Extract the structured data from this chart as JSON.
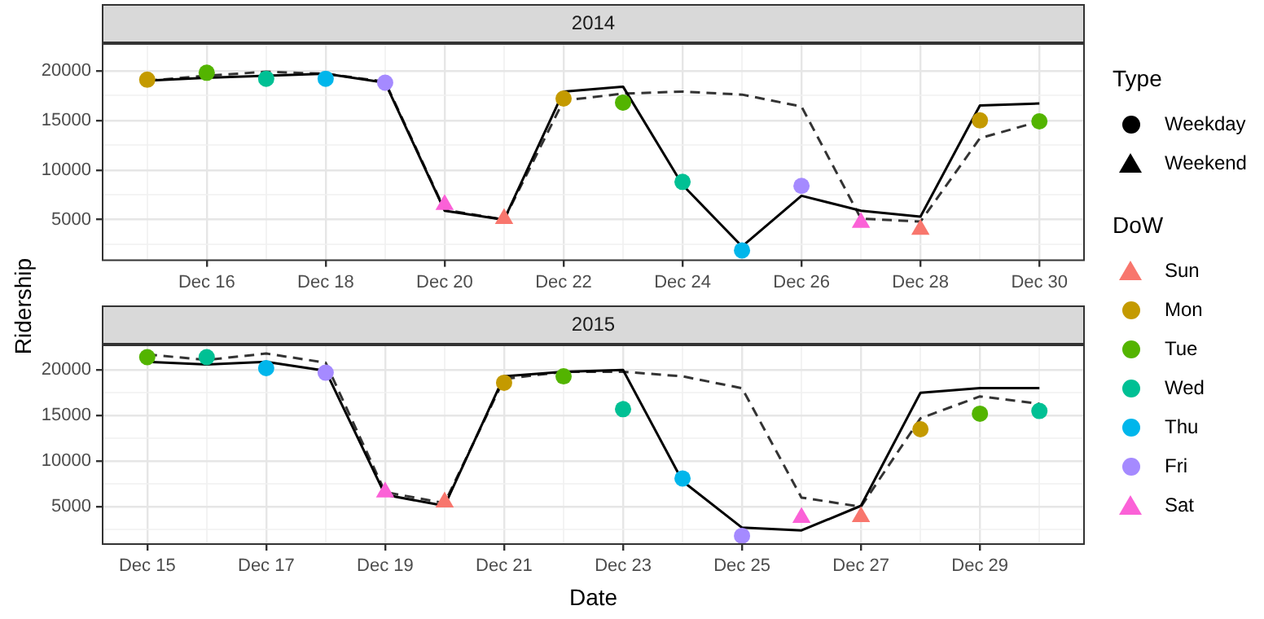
{
  "chart_data": [
    {
      "type": "line",
      "title": "2014",
      "ylabel": "Ridership",
      "legend_title": "Type",
      "legend": "right",
      "grid": true,
      "x": [
        "2014-12-15",
        "2014-12-16",
        "2014-12-17",
        "2014-12-18",
        "2014-12-19",
        "2014-12-20",
        "2014-12-21",
        "2014-12-22",
        "2014-12-23",
        "2014-12-24",
        "2014-12-25",
        "2014-12-26",
        "2014-12-27",
        "2014-12-28",
        "2014-12-29",
        "2014-12-30"
      ],
      "xlim": [
        "2014-12-14T06:00",
        "2014-12-30T18:00"
      ],
      "xticks": [
        {
          "value": "2014-12-15",
          "label": null
        },
        {
          "value": "2014-12-16",
          "label": "Dec 16"
        },
        {
          "value": "2014-12-17",
          "label": null
        },
        {
          "value": "2014-12-18",
          "label": "Dec 18"
        },
        {
          "value": "2014-12-19",
          "label": null
        },
        {
          "value": "2014-12-20",
          "label": "Dec 20"
        },
        {
          "value": "2014-12-21",
          "label": null
        },
        {
          "value": "2014-12-22",
          "label": "Dec 22"
        },
        {
          "value": "2014-12-23",
          "label": null
        },
        {
          "value": "2014-12-24",
          "label": "Dec 24"
        },
        {
          "value": "2014-12-25",
          "label": null
        },
        {
          "value": "2014-12-26",
          "label": "Dec 26"
        },
        {
          "value": "2014-12-27",
          "label": null
        },
        {
          "value": "2014-12-28",
          "label": "Dec 28"
        },
        {
          "value": "2014-12-29",
          "label": null
        },
        {
          "value": "2014-12-30",
          "label": "Dec 30"
        }
      ],
      "ylim": [
        900,
        22700
      ],
      "yticks": [
        {
          "value": 2500,
          "label": null
        },
        5000,
        {
          "value": 7500,
          "label": null
        },
        10000,
        {
          "value": 12500,
          "label": null
        },
        15000,
        {
          "value": 17500,
          "label": null
        },
        20000
      ],
      "series": [
        {
          "type": "line",
          "color": "#000000",
          "line_style": "solid",
          "marker": "none",
          "values": [
            19000,
            19300,
            19500,
            19700,
            18800,
            5900,
            5000,
            17900,
            18400,
            8500,
            2300,
            7400,
            5900,
            5300,
            16500,
            16700
          ]
        },
        {
          "type": "line",
          "color": "#333333",
          "line_style": "dashed",
          "marker": "none",
          "values": [
            19000,
            19500,
            19900,
            19700,
            18900,
            6000,
            5000,
            17000,
            17700,
            17900,
            17600,
            16400,
            5100,
            4800,
            13200,
            14900
          ]
        },
        {
          "type": "scatter",
          "name": "Weekday",
          "color": "#000000",
          "marker": "circle",
          "x": [
            "2014-12-15",
            "2014-12-16",
            "2014-12-17",
            "2014-12-18",
            "2014-12-19",
            "2014-12-22",
            "2014-12-23",
            "2014-12-24",
            "2014-12-25",
            "2014-12-26",
            "2014-12-29",
            "2014-12-30"
          ],
          "values": [
            19100,
            19800,
            19200,
            19200,
            18800,
            17200,
            16800,
            8800,
            1900,
            8400,
            15000,
            14900
          ],
          "colors": [
            "#c49a00",
            "#53b400",
            "#00c094",
            "#00b6eb",
            "#a58aff",
            "#c49a00",
            "#53b400",
            "#00c094",
            "#00b6eb",
            "#a58aff",
            "#c49a00",
            "#53b400"
          ]
        },
        {
          "type": "scatter",
          "name": "Weekend",
          "color": "#000000",
          "marker": "triangle",
          "x": [
            "2014-12-20",
            "2014-12-21",
            "2014-12-27",
            "2014-12-28"
          ],
          "values": [
            6500,
            5100,
            4700,
            4000
          ],
          "colors": [
            "#fb61d7",
            "#f8766d",
            "#fb61d7",
            "#f8766d"
          ]
        }
      ]
    },
    {
      "type": "line",
      "title": "2015",
      "xlabel": "Date",
      "legend_title": "DoW",
      "legend": "right",
      "grid": true,
      "x": [
        "2015-12-15",
        "2015-12-16",
        "2015-12-17",
        "2015-12-18",
        "2015-12-19",
        "2015-12-20",
        "2015-12-21",
        "2015-12-22",
        "2015-12-23",
        "2015-12-24",
        "2015-12-25",
        "2015-12-26",
        "2015-12-27",
        "2015-12-28",
        "2015-12-29",
        "2015-12-30"
      ],
      "xlim": [
        "2015-12-14T06:00",
        "2015-12-30T18:00"
      ],
      "xticks": [
        {
          "value": "2015-12-15",
          "label": "Dec 15"
        },
        {
          "value": "2015-12-16",
          "label": null
        },
        {
          "value": "2015-12-17",
          "label": "Dec 17"
        },
        {
          "value": "2015-12-18",
          "label": null
        },
        {
          "value": "2015-12-19",
          "label": "Dec 19"
        },
        {
          "value": "2015-12-20",
          "label": null
        },
        {
          "value": "2015-12-21",
          "label": "Dec 21"
        },
        {
          "value": "2015-12-22",
          "label": null
        },
        {
          "value": "2015-12-23",
          "label": "Dec 23"
        },
        {
          "value": "2015-12-24",
          "label": null
        },
        {
          "value": "2015-12-25",
          "label": "Dec 25"
        },
        {
          "value": "2015-12-26",
          "label": null
        },
        {
          "value": "2015-12-27",
          "label": "Dec 27"
        },
        {
          "value": "2015-12-28",
          "label": null
        },
        {
          "value": "2015-12-29",
          "label": "Dec 29"
        },
        {
          "value": "2015-12-30",
          "label": null
        }
      ],
      "ylim": [
        900,
        22700
      ],
      "yticks": [
        {
          "value": 2500,
          "label": null
        },
        5000,
        {
          "value": 7500,
          "label": null
        },
        10000,
        {
          "value": 12500,
          "label": null
        },
        15000,
        {
          "value": 17500,
          "label": null
        },
        20000
      ],
      "series": [
        {
          "type": "line",
          "color": "#000000",
          "line_style": "solid",
          "marker": "none",
          "values": [
            20900,
            20600,
            20900,
            19900,
            6300,
            5100,
            19300,
            19800,
            20000,
            7800,
            2700,
            2400,
            5100,
            17500,
            18000,
            18000
          ]
        },
        {
          "type": "line",
          "color": "#333333",
          "line_style": "dashed",
          "marker": "none",
          "values": [
            21700,
            21100,
            21800,
            20800,
            6600,
            5400,
            19000,
            19800,
            19800,
            19300,
            18000,
            6000,
            5000,
            14700,
            17100,
            16300
          ]
        },
        {
          "type": "scatter",
          "name": "Sun",
          "color": "#f8766d",
          "marker": "triangle",
          "x": [
            "2015-12-20",
            "2015-12-27"
          ],
          "values": [
            5500,
            3900
          ]
        },
        {
          "type": "scatter",
          "name": "Mon",
          "color": "#c49a00",
          "marker": "circle",
          "x": [
            "2015-12-21",
            "2015-12-28"
          ],
          "values": [
            18600,
            13500
          ]
        },
        {
          "type": "scatter",
          "name": "Tue",
          "color": "#53b400",
          "marker": "circle",
          "x": [
            "2015-12-15",
            "2015-12-22",
            "2015-12-29"
          ],
          "values": [
            21400,
            19300,
            15200
          ]
        },
        {
          "type": "scatter",
          "name": "Wed",
          "color": "#00c094",
          "marker": "circle",
          "x": [
            "2015-12-16",
            "2015-12-23",
            "2015-12-30"
          ],
          "values": [
            21400,
            15700,
            15500
          ]
        },
        {
          "type": "scatter",
          "name": "Thu",
          "color": "#00b6eb",
          "marker": "circle",
          "x": [
            "2015-12-17",
            "2015-12-24"
          ],
          "values": [
            20200,
            8100
          ]
        },
        {
          "type": "scatter",
          "name": "Fri",
          "color": "#a58aff",
          "marker": "circle",
          "x": [
            "2015-12-18",
            "2015-12-25"
          ],
          "values": [
            19700,
            1800
          ]
        },
        {
          "type": "scatter",
          "name": "Sat",
          "color": "#fb61d7",
          "marker": "triangle",
          "x": [
            "2015-12-19",
            "2015-12-26"
          ],
          "values": [
            6600,
            3800
          ]
        }
      ]
    }
  ]
}
